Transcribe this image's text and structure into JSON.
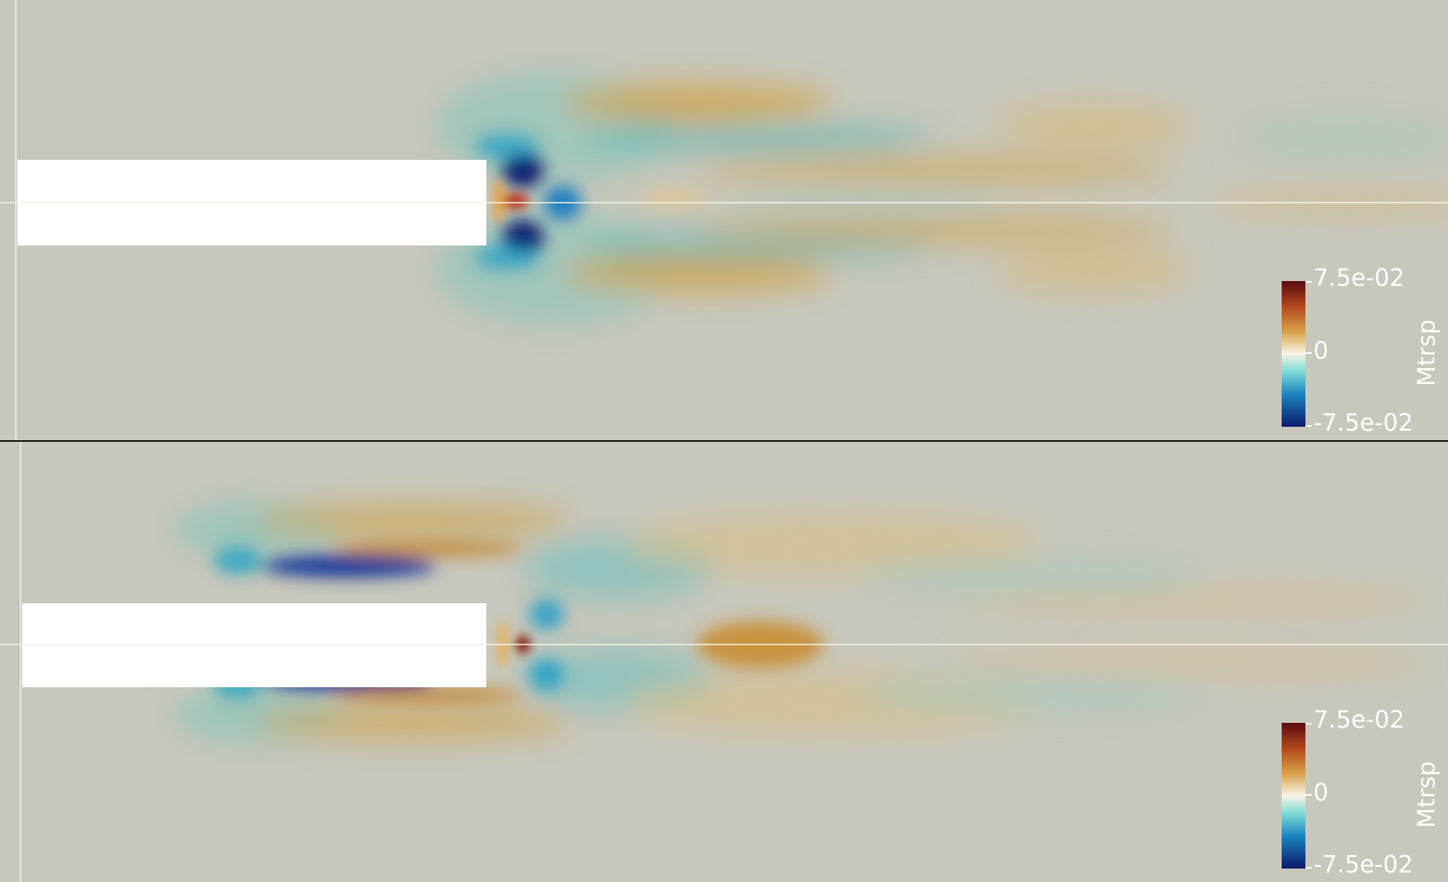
{
  "views": [
    {
      "name": "top",
      "colorbar": {
        "title": "Mtrsp",
        "max_label": "7.5e-02",
        "mid_label": "0",
        "min_label": "-7.5e-02",
        "range": [
          -0.075,
          0.075
        ]
      }
    },
    {
      "name": "bottom",
      "colorbar": {
        "title": "Mtrsp",
        "max_label": "7.5e-02",
        "mid_label": "0",
        "min_label": "-7.5e-02",
        "range": [
          -0.075,
          0.075
        ]
      }
    }
  ],
  "colors": {
    "background": "#c8c7bb",
    "body": "#ffffff",
    "positive_strong": "#6b0f12",
    "positive_mid": "#c98a2a",
    "positive_weak": "#e6cf8f",
    "neutral": "#f4f1dd",
    "negative_weak": "#7fd3d0",
    "negative_mid": "#1a8fc0",
    "negative_strong": "#0b1f6b"
  }
}
